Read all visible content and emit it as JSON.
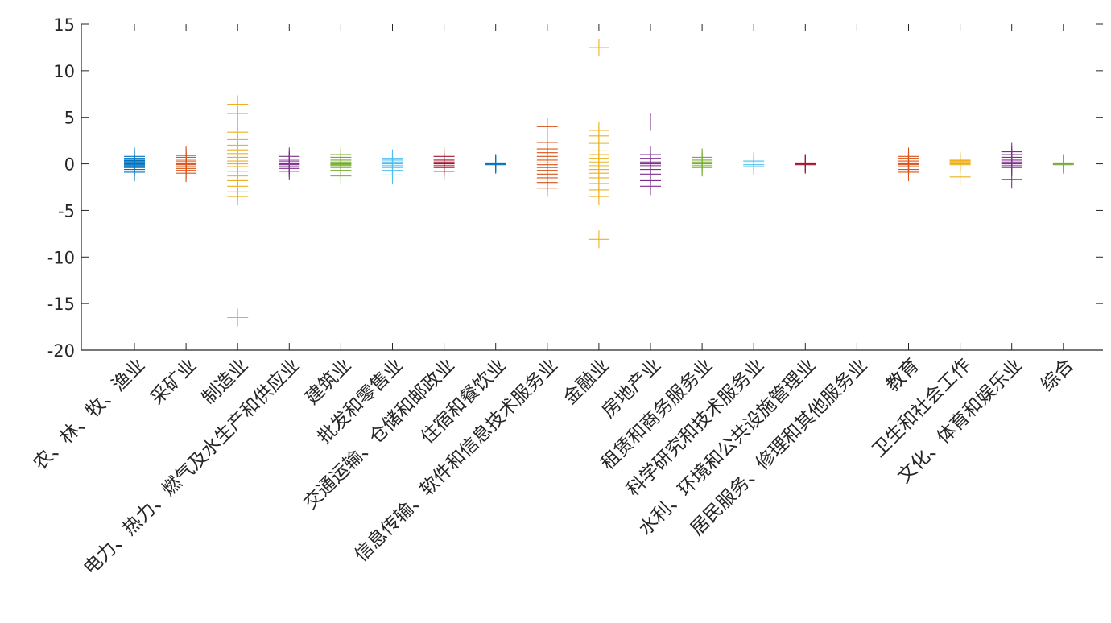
{
  "chart_data": {
    "type": "scatter",
    "title": "",
    "xlabel": "",
    "ylabel": "",
    "ylim": [
      -20,
      15
    ],
    "yticks": [
      15,
      10,
      5,
      0,
      -5,
      -10,
      -15,
      -20
    ],
    "grid": false,
    "marker": "+",
    "categories": [
      "农、林、牧、渔业",
      "采矿业",
      "制造业",
      "电力、热力、燃气及水生产和供应业",
      "建筑业",
      "批发和零售业",
      "交通运输、仓储和邮政业",
      "住宿和餐饮业",
      "信息传输、软件和信息技术服务业",
      "金融业",
      "房地产业",
      "租赁和商务服务业",
      "科学研究和技术服务业",
      "水利、环境和公共设施管理业",
      "居民服务、修理和其他服务业",
      "教育",
      "卫生和社会工作",
      "文化、体育和娱乐业",
      "综合"
    ],
    "series": [
      {
        "color": "#0072BD",
        "values": [
          -0.9,
          -0.6,
          -0.4,
          -0.3,
          -0.2,
          -0.1,
          0,
          0.1,
          0.2,
          0.3,
          0.4,
          0.6,
          0.8
        ]
      },
      {
        "color": "#D95319",
        "values": [
          -1.0,
          -0.7,
          -0.5,
          -0.3,
          -0.1,
          0,
          0.1,
          0.3,
          0.5,
          0.7,
          0.9
        ]
      },
      {
        "color": "#EDB120",
        "values": [
          -16.5,
          -3.5,
          -3.0,
          -2.4,
          -1.8,
          -1.3,
          -0.8,
          -0.3,
          0,
          0.3,
          0.7,
          1.1,
          1.5,
          2.0,
          2.6,
          3.4,
          4.5,
          5.4,
          6.4
        ]
      },
      {
        "color": "#7E2F8E",
        "values": [
          -0.8,
          -0.5,
          -0.3,
          -0.1,
          0,
          0.1,
          0.3,
          0.5,
          0.8
        ]
      },
      {
        "color": "#77AC30",
        "values": [
          -1.3,
          -0.7,
          -0.4,
          -0.2,
          -0.1,
          0,
          0.2,
          0.4,
          0.7,
          1.0
        ]
      },
      {
        "color": "#4DBEEE",
        "values": [
          -1.2,
          -0.7,
          -0.4,
          -0.2,
          0,
          0.2,
          0.4,
          0.6
        ]
      },
      {
        "color": "#A2142F",
        "values": [
          -0.8,
          -0.4,
          -0.2,
          0,
          0.2,
          0.4,
          0.8
        ]
      },
      {
        "color": "#0072BD",
        "values": [
          -0.1,
          0,
          0.1
        ]
      },
      {
        "color": "#D95319",
        "values": [
          -2.6,
          -2.0,
          -1.5,
          -1.1,
          -0.7,
          -0.4,
          -0.1,
          0.1,
          0.4,
          0.8,
          1.2,
          1.6,
          2.3,
          4.0
        ]
      },
      {
        "color": "#EDB120",
        "values": [
          -8.1,
          -3.5,
          -2.8,
          -2.1,
          -1.5,
          -1.0,
          -0.6,
          -0.2,
          0.2,
          0.6,
          1.0,
          1.4,
          2.2,
          3.0,
          3.6,
          12.5
        ]
      },
      {
        "color": "#7E2F8E",
        "values": [
          -2.4,
          -1.8,
          -1.1,
          -0.6,
          -0.2,
          0,
          0.2,
          0.6,
          1.0,
          4.5
        ]
      },
      {
        "color": "#77AC30",
        "values": [
          -0.4,
          -0.2,
          0,
          0.2,
          0.4,
          0.7
        ]
      },
      {
        "color": "#4DBEEE",
        "values": [
          -0.3,
          -0.1,
          0.1,
          0.3
        ]
      },
      {
        "color": "#A2142F",
        "values": [
          -0.1,
          0,
          0.1
        ]
      },
      {
        "color": "#D95319",
        "values": []
      },
      {
        "color": "#D95319",
        "values": [
          -0.9,
          -0.6,
          -0.3,
          -0.1,
          0,
          0.1,
          0.3,
          0.6,
          0.8
        ]
      },
      {
        "color": "#EDB120",
        "values": [
          -1.4,
          -0.1,
          0,
          0.1,
          0.2,
          0.3,
          0.4
        ]
      },
      {
        "color": "#7E2F8E",
        "values": [
          -1.7,
          -0.4,
          -0.2,
          0,
          0.2,
          0.4,
          0.7,
          1.0,
          1.3
        ]
      },
      {
        "color": "#77AC30",
        "values": [
          -0.1,
          0,
          0.1
        ]
      }
    ]
  }
}
